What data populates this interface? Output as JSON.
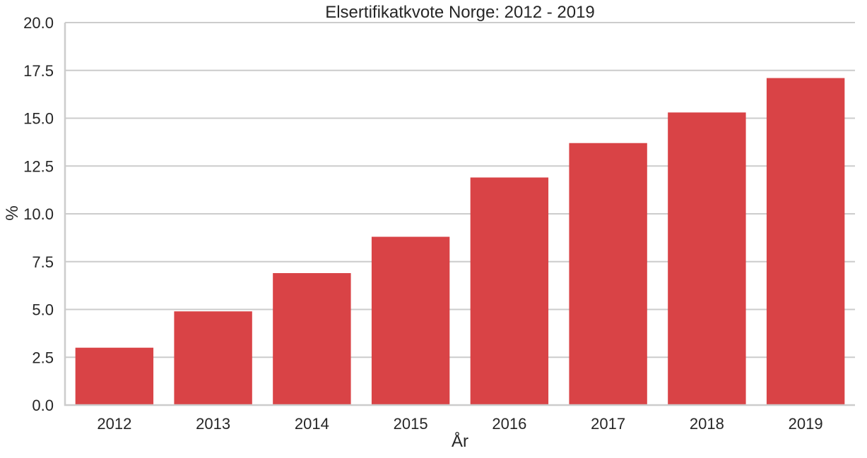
{
  "chart_data": {
    "type": "bar",
    "title": "Elsertifikatkvote Norge: 2012 - 2019",
    "xlabel": "År",
    "ylabel": "%",
    "categories": [
      "2012",
      "2013",
      "2014",
      "2015",
      "2016",
      "2017",
      "2018",
      "2019"
    ],
    "values": [
      3.0,
      4.9,
      6.9,
      8.8,
      11.9,
      13.7,
      15.3,
      17.1
    ],
    "ylim": [
      0,
      20
    ],
    "yticks": [
      "0.0",
      "2.5",
      "5.0",
      "7.5",
      "10.0",
      "12.5",
      "15.0",
      "17.5",
      "20.0"
    ],
    "grid": "horizontal",
    "bar_color": "#d94346",
    "grid_color": "#cccccc",
    "axis_color": "#cccccc"
  }
}
